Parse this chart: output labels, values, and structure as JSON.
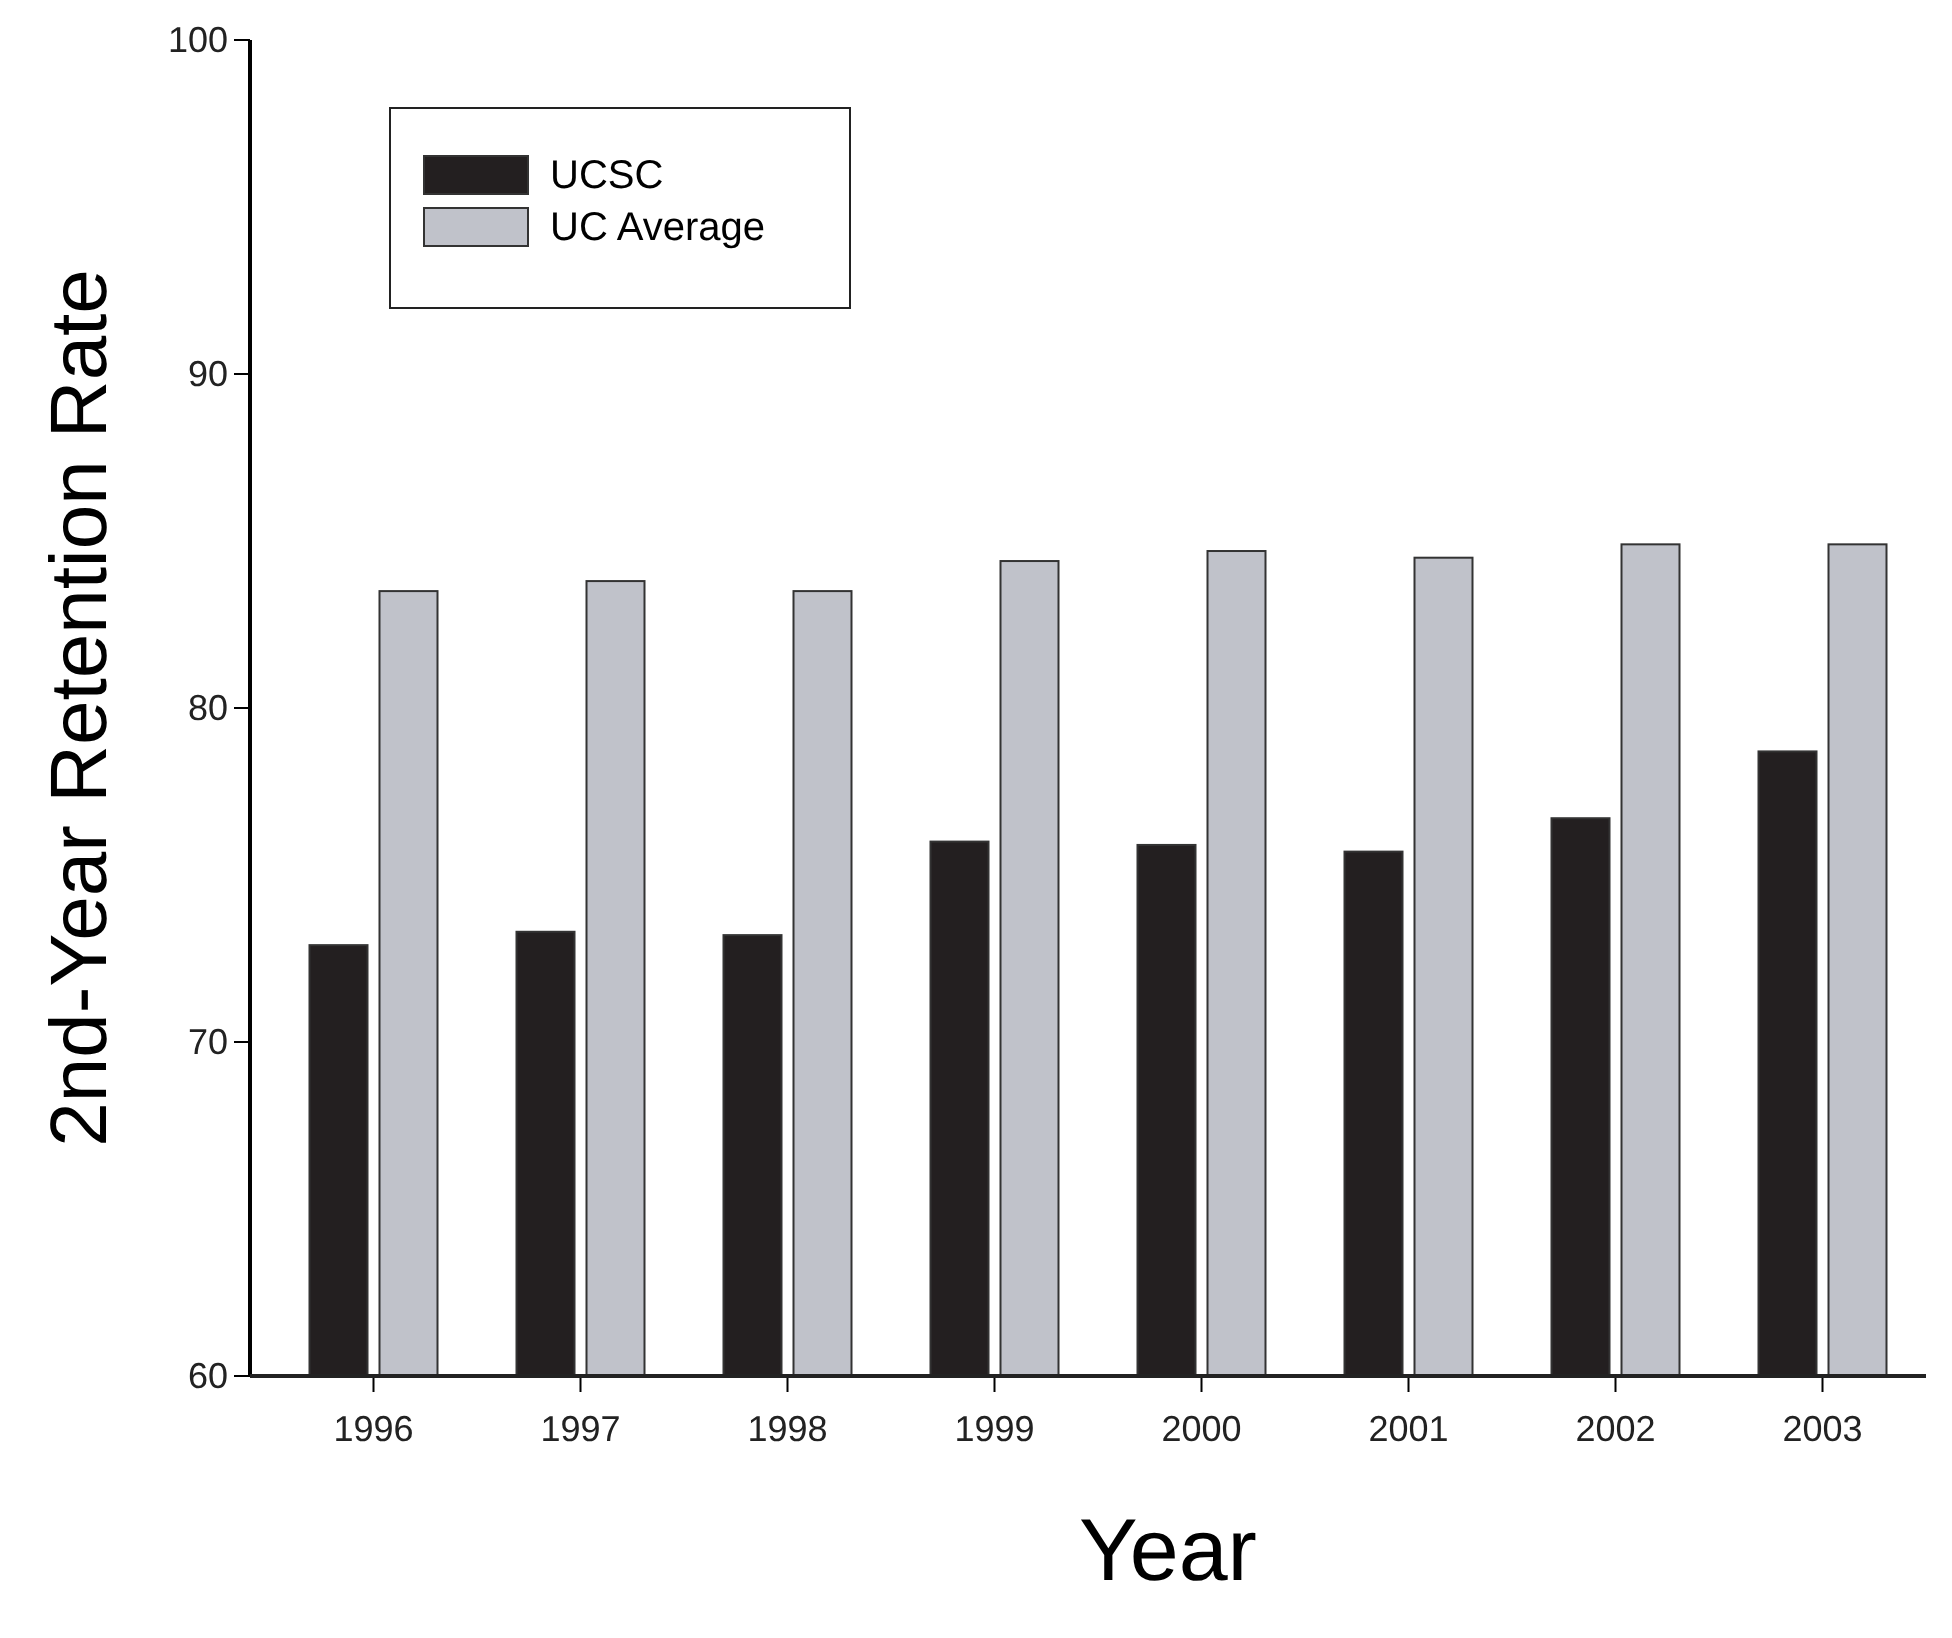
{
  "chart_data": {
    "type": "bar",
    "xlabel": "Year",
    "ylabel": "2nd-Year Retention Rate",
    "categories": [
      "1996",
      "1997",
      "1998",
      "1999",
      "2000",
      "2001",
      "2002",
      "2003"
    ],
    "series": [
      {
        "name": "UCSC",
        "color": "#231f20",
        "values": [
          72.9,
          73.3,
          73.2,
          76.0,
          75.9,
          75.7,
          76.7,
          78.7
        ]
      },
      {
        "name": "UC Average",
        "color": "#c0c2ca",
        "values": [
          83.5,
          83.8,
          83.5,
          84.4,
          84.7,
          84.5,
          84.9,
          84.9
        ]
      }
    ],
    "ylim": [
      60,
      100
    ],
    "yticks": [
      60,
      70,
      80,
      90,
      100
    ],
    "legend": "top left"
  }
}
